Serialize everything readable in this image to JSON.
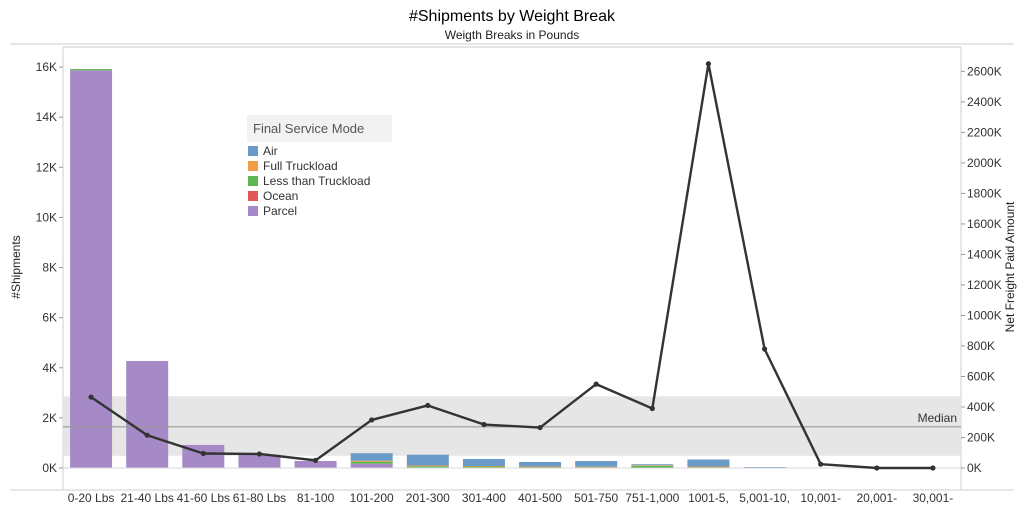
{
  "chart_data": {
    "type": "bar",
    "title": "#Shipments by Weight Break",
    "subtitle": "Weigth Breaks in Pounds",
    "ylabel": "#Shipments",
    "y2label": "Net Freight Paid Amount",
    "categories": [
      "0-20 Lbs",
      "21-40 Lbs",
      "41-60 Lbs",
      "61-80 Lbs",
      "81-100",
      "101-200",
      "201-300",
      "301-400",
      "401-500",
      "501-750",
      "751-1,000",
      "1001-5,",
      "5,001-10,",
      "10,001-",
      "20,001-",
      "30,001-"
    ],
    "ylim": [
      0,
      16800
    ],
    "y_ticks": [
      0,
      2000,
      4000,
      6000,
      8000,
      10000,
      12000,
      14000,
      16000
    ],
    "y_tick_labels": [
      "0K",
      "2K",
      "4K",
      "6K",
      "8K",
      "10K",
      "12K",
      "14K",
      "16K"
    ],
    "y2lim": [
      0,
      2760000
    ],
    "y2_ticks": [
      0,
      200000,
      400000,
      600000,
      800000,
      1000000,
      1200000,
      1400000,
      1600000,
      1800000,
      2000000,
      2200000,
      2400000,
      2600000
    ],
    "y2_tick_labels": [
      "0K",
      "200K",
      "400K",
      "600K",
      "800K",
      "1000K",
      "1200K",
      "1400K",
      "1600K",
      "1800K",
      "2000K",
      "2200K",
      "2400K",
      "2600K"
    ],
    "stacked": true,
    "series": [
      {
        "name": "Air",
        "color": "#6a9ac7",
        "values": [
          0,
          0,
          0,
          0,
          0,
          300,
          430,
          280,
          180,
          230,
          40,
          280,
          40,
          20,
          10,
          5
        ]
      },
      {
        "name": "Full Truckload",
        "color": "#f29d45",
        "values": [
          0,
          0,
          0,
          0,
          0,
          40,
          30,
          20,
          10,
          10,
          20,
          10,
          0,
          0,
          0,
          0
        ]
      },
      {
        "name": "Less than Truckload",
        "color": "#5db553",
        "values": [
          50,
          0,
          0,
          0,
          0,
          80,
          70,
          60,
          50,
          40,
          90,
          20,
          0,
          0,
          0,
          0
        ]
      },
      {
        "name": "Ocean",
        "color": "#e15759",
        "values": [
          0,
          0,
          0,
          0,
          0,
          0,
          0,
          0,
          0,
          0,
          0,
          30,
          0,
          0,
          0,
          0
        ]
      },
      {
        "name": "Parcel",
        "color": "#a58ac7",
        "values": [
          15870,
          4270,
          920,
          530,
          280,
          170,
          0,
          0,
          0,
          0,
          0,
          0,
          0,
          0,
          0,
          0
        ]
      }
    ],
    "line": {
      "name": "Net Freight Paid Amount",
      "axis": "right",
      "color": "#333333",
      "values": [
        465000,
        215000,
        95000,
        92000,
        50000,
        315000,
        410000,
        285000,
        265000,
        550000,
        390000,
        2650000,
        780000,
        25000,
        0,
        0
      ]
    },
    "reference_band": {
      "y2_from": 80000,
      "y2_to": 470000,
      "color": "#e6e6e6"
    },
    "reference_line": {
      "label": "Median",
      "y2": 270000,
      "color": "#999999"
    },
    "legend": {
      "title": "Final Service Mode",
      "position": "top-left"
    },
    "grid": false
  }
}
